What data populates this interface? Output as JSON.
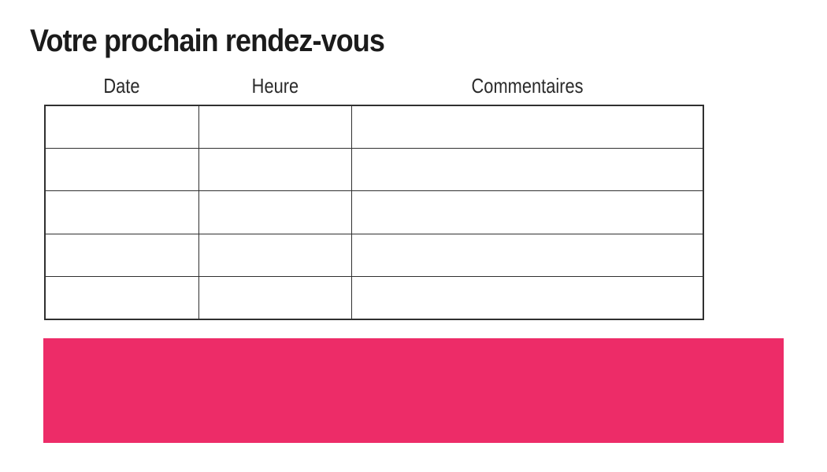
{
  "page": {
    "title": "Votre prochain rendez-vous"
  },
  "table": {
    "columns": [
      {
        "label": "Date"
      },
      {
        "label": "Heure"
      },
      {
        "label": "Commentaires"
      }
    ],
    "rows": [
      [
        "",
        "",
        ""
      ],
      [
        "",
        "",
        ""
      ],
      [
        "",
        "",
        ""
      ],
      [
        "",
        "",
        ""
      ],
      [
        "",
        "",
        ""
      ]
    ]
  },
  "banner": {
    "color": "#ED2C68"
  }
}
